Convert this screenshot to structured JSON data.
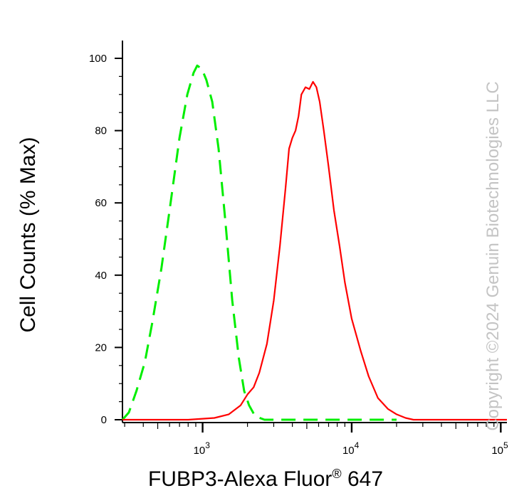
{
  "chart_data": {
    "type": "area",
    "title": "",
    "xlabel_prefix": "FUBP3-Alexa Fluor",
    "xlabel_super": "®",
    "xlabel_suffix": " 647",
    "ylabel": "Cell Counts (% Max)",
    "x_scale": "log",
    "xlim": [
      290,
      110000
    ],
    "ylim": [
      0,
      100
    ],
    "y_ticks": [
      {
        "value": 0,
        "label": "0"
      },
      {
        "value": 20,
        "label": "20"
      },
      {
        "value": 40,
        "label": "40"
      },
      {
        "value": 60,
        "label": "60"
      },
      {
        "value": 80,
        "label": "80"
      },
      {
        "value": 100,
        "label": "100"
      }
    ],
    "x_ticks": [
      {
        "value": 1000,
        "base": "10",
        "exp": "3"
      },
      {
        "value": 10000,
        "base": "10",
        "exp": "4"
      },
      {
        "value": 100000,
        "base": "10",
        "exp": "5"
      }
    ],
    "grid": false,
    "series": [
      {
        "color": "#00ee00",
        "line_style": "dashed",
        "points": [
          [
            290,
            0
          ],
          [
            320,
            2
          ],
          [
            360,
            8
          ],
          [
            410,
            16
          ],
          [
            460,
            27
          ],
          [
            530,
            42
          ],
          [
            610,
            60
          ],
          [
            700,
            78
          ],
          [
            790,
            90
          ],
          [
            870,
            96
          ],
          [
            920,
            98
          ],
          [
            990,
            97
          ],
          [
            1060,
            94
          ],
          [
            1160,
            88
          ],
          [
            1280,
            75
          ],
          [
            1420,
            55
          ],
          [
            1580,
            33
          ],
          [
            1750,
            17
          ],
          [
            1900,
            8
          ],
          [
            2050,
            4
          ],
          [
            2250,
            1
          ],
          [
            2600,
            0
          ],
          [
            20000,
            0
          ]
        ]
      },
      {
        "color": "#ff0000",
        "line_style": "solid",
        "points": [
          [
            290,
            0
          ],
          [
            800,
            0
          ],
          [
            1200,
            0.5
          ],
          [
            1500,
            1.5
          ],
          [
            1800,
            4
          ],
          [
            2000,
            7
          ],
          [
            2200,
            9
          ],
          [
            2400,
            13
          ],
          [
            2700,
            21
          ],
          [
            3000,
            33
          ],
          [
            3300,
            48
          ],
          [
            3600,
            64
          ],
          [
            3800,
            75
          ],
          [
            4000,
            78
          ],
          [
            4200,
            80
          ],
          [
            4400,
            84
          ],
          [
            4600,
            90
          ],
          [
            4900,
            92
          ],
          [
            5200,
            91.5
          ],
          [
            5500,
            93.5
          ],
          [
            5800,
            92
          ],
          [
            6100,
            88
          ],
          [
            6500,
            80
          ],
          [
            7000,
            70
          ],
          [
            7600,
            58
          ],
          [
            8300,
            48
          ],
          [
            9000,
            38
          ],
          [
            10000,
            28
          ],
          [
            11500,
            19
          ],
          [
            13000,
            12
          ],
          [
            15000,
            6
          ],
          [
            17500,
            3
          ],
          [
            20000,
            1.5
          ],
          [
            23000,
            0.5
          ],
          [
            26000,
            0
          ],
          [
            110000,
            0
          ]
        ]
      }
    ]
  },
  "watermark": "Copyright ©2024 Genuin Biotechnologies LLC"
}
